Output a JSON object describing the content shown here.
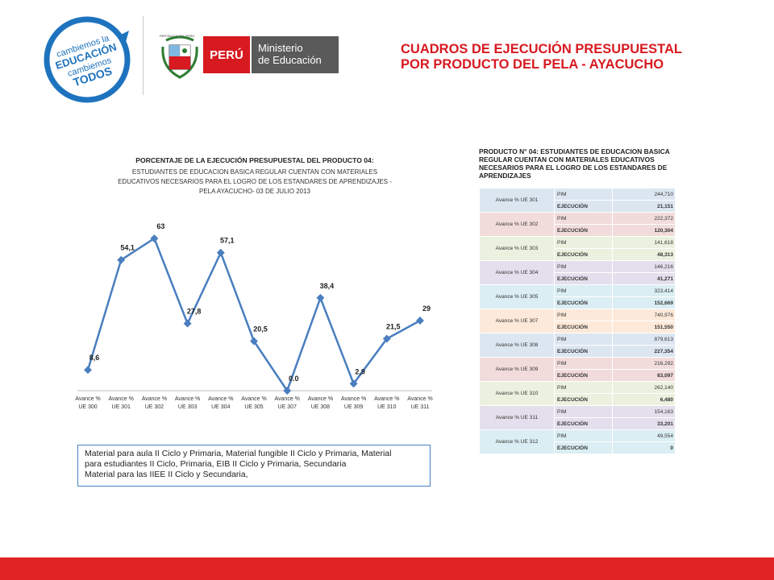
{
  "header": {
    "logo_text": [
      "cambiemos la",
      "EDUCACIÓN",
      "cambiemos",
      "TODOS"
    ],
    "seal_caption": "REPÚBLICA DEL PERÚ",
    "peru_label": "PERÚ",
    "ministry_lines": [
      "Ministerio",
      "de Educación"
    ],
    "title_lines": [
      "CUADROS  DE  EJECUCIÓN  PRESUPUESTAL",
      "POR PRODUCTO  DEL PELA - AYACUCHO"
    ]
  },
  "chart_data": {
    "type": "line",
    "title_lines": [
      "PORCENTAJE DE LA EJECUCIÓN PRESUPUESTAL DEL PRODUCTO 04:",
      "ESTUDIANTES DE EDUCACION BASICA REGULAR CUENTAN CON MATERIALES",
      "EDUCATIVOS NECESARIOS PARA EL LOGRO DE LOS ESTANDARES DE APRENDIZAJES -",
      "PELA AYACUCHO- 03 DE JULIO 2013"
    ],
    "categories": [
      [
        "Avance %",
        "UE 300"
      ],
      [
        "Avance %",
        "UE 301"
      ],
      [
        "Avance %",
        "UE 302"
      ],
      [
        "Avance %",
        "UE 303"
      ],
      [
        "Avance %",
        "UE 304"
      ],
      [
        "Avance %",
        "UE 305"
      ],
      [
        "Avance %",
        "UE 307"
      ],
      [
        "Avance %",
        "UE 308"
      ],
      [
        "Avance %",
        "UE 309"
      ],
      [
        "Avance %",
        "UE 310"
      ],
      [
        "Avance %",
        "UE 311"
      ]
    ],
    "values": [
      8.6,
      54.1,
      63,
      27.8,
      57.1,
      20.5,
      0.0,
      38.4,
      2.9,
      21.5,
      29
    ],
    "value_labels": [
      "8,6",
      "54,1",
      "63",
      "27,8",
      "57,1",
      "20,5",
      "0.0",
      "38,4",
      "2,9",
      "21,5",
      "29"
    ],
    "ylim": [
      0,
      70
    ],
    "grid": false,
    "line_color": "#4a7ebf"
  },
  "notes": {
    "lines": [
      "Material para aula II Ciclo y Primaria, Material fungible II Ciclo y Primaria, Material",
      "para estudiantes II Ciclo, Primaria, EIB II Ciclo y Primaria, Secundaria",
      "Material para las IIEE II Ciclo y Secundaria,"
    ]
  },
  "table": {
    "title": "PRODUCTO N° 04: ESTUDIANTES DE EDUCACION BASICA REGULAR CUENTAN CON MATERIALES EDUCATIVOS NECESARIOS PARA EL LOGRO DE LOS ESTANDARES DE APRENDIZAJES",
    "pim_label": "PIM",
    "ejec_label": "EJECUCIÓN",
    "rows": [
      {
        "ue": "Avance % UE 301",
        "pim": "244,710",
        "ejec": "21,151",
        "color": "#dce6f1"
      },
      {
        "ue": "Avance % UE 302",
        "pim": "222,372",
        "ejec": "120,304",
        "color": "#f2dcdb"
      },
      {
        "ue": "Avance % UE 303",
        "pim": "141,618",
        "ejec": "48,313",
        "color": "#ebf1de"
      },
      {
        "ue": "Avance % UE 304",
        "pim": "146,216",
        "ejec": "41,271",
        "color": "#e4dfec"
      },
      {
        "ue": "Avance % UE 305",
        "pim": "323,414",
        "ejec": "152,669",
        "color": "#daeef3"
      },
      {
        "ue": "Avance % UE 307",
        "pim": "740,976",
        "ejec": "151,550",
        "color": "#fde9d9"
      },
      {
        "ue": "Avance % UE 308",
        "pim": "879,613",
        "ejec": "227,354",
        "color": "#dce6f1"
      },
      {
        "ue": "Avance % UE 309",
        "pim": "216,292",
        "ejec": "83,097",
        "color": "#f2dcdb"
      },
      {
        "ue": "Avance % UE 310",
        "pim": "262,140",
        "ejec": "6,480",
        "color": "#ebf1de"
      },
      {
        "ue": "Avance % UE 311",
        "pim": "154,163",
        "ejec": "33,201",
        "color": "#e4dfec"
      },
      {
        "ue": "Avance % UE 312",
        "pim": "49,554",
        "ejec": "0",
        "color": "#daeef3"
      }
    ]
  },
  "colors": {
    "brand_red": "#d71920",
    "footer_red": "#e02424",
    "ministry_gray": "#5a5a5a",
    "logo_blue": "#1e73be"
  }
}
